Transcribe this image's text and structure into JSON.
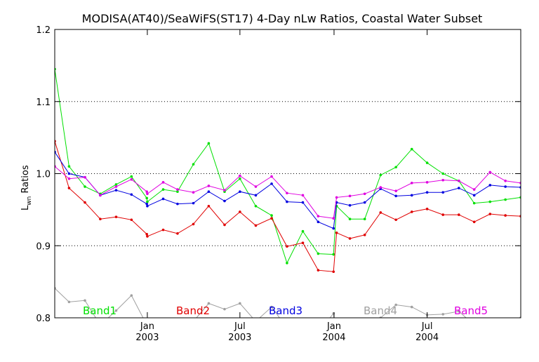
{
  "chart_data": {
    "type": "line",
    "title": "MODISA(AT40)/SeaWiFS(ST17) 4-Day nLw Ratios, Coastal Water Subset",
    "ylabel_main": "L",
    "ylabel_sub": "wn",
    "ylabel_rest": " Ratios",
    "xlabel": "",
    "ylim": [
      0.8,
      1.2
    ],
    "xlim": [
      "2002-07-04",
      "2004-12-31"
    ],
    "grid": "horizontal dotted",
    "yticks": [
      0.8,
      0.9,
      1.0,
      1.1,
      1.2
    ],
    "ytick_labels": [
      "0.8",
      "0.9",
      "1.0",
      "1.1",
      "1.2"
    ],
    "xticks": [
      {
        "date": "2003-01-01",
        "month": "Jan",
        "year": "2003"
      },
      {
        "date": "2003-07-01",
        "month": "Jul",
        "year": "2003"
      },
      {
        "date": "2004-01-01",
        "month": "Jan",
        "year": "2004"
      },
      {
        "date": "2004-07-01",
        "month": "Jul",
        "year": "2004"
      }
    ],
    "x": [
      "2002-07-04",
      "2002-08-01",
      "2002-09-01",
      "2002-10-01",
      "2002-11-01",
      "2002-12-01",
      "2002-12-31",
      "2003-01-01",
      "2003-02-01",
      "2003-03-01",
      "2003-04-01",
      "2003-05-01",
      "2003-06-01",
      "2003-07-01",
      "2003-08-01",
      "2003-09-01",
      "2003-10-01",
      "2003-11-01",
      "2003-12-01",
      "2003-12-31",
      "2004-01-06",
      "2004-02-01",
      "2004-03-01",
      "2004-04-01",
      "2004-05-01",
      "2004-06-01",
      "2004-07-01",
      "2004-08-01",
      "2004-09-01",
      "2004-10-01",
      "2004-11-01",
      "2004-12-01",
      "2004-12-31"
    ],
    "series": [
      {
        "name": "Band1",
        "color": "#00e000",
        "values": [
          1.145,
          1.01,
          0.982,
          0.972,
          0.985,
          0.996,
          0.966,
          0.961,
          0.978,
          0.975,
          1.013,
          1.042,
          0.975,
          0.993,
          0.955,
          0.942,
          0.876,
          0.92,
          0.889,
          0.888,
          0.955,
          0.937,
          0.937,
          0.998,
          1.009,
          1.034,
          1.015,
          1.0,
          0.99,
          0.959,
          0.961,
          0.964,
          0.967
        ]
      },
      {
        "name": "Band2",
        "color": "#e00000",
        "values": [
          1.045,
          0.98,
          0.96,
          0.937,
          0.94,
          0.936,
          0.916,
          0.913,
          0.922,
          0.917,
          0.93,
          0.955,
          0.929,
          0.947,
          0.928,
          0.938,
          0.899,
          0.904,
          0.866,
          0.864,
          0.918,
          0.91,
          0.915,
          0.946,
          0.936,
          0.947,
          0.951,
          0.943,
          0.943,
          0.933,
          0.944,
          0.942,
          0.941
        ]
      },
      {
        "name": "Band3",
        "color": "#0000e0",
        "values": [
          1.03,
          1.0,
          0.995,
          0.97,
          0.977,
          0.971,
          0.958,
          0.955,
          0.965,
          0.958,
          0.959,
          0.975,
          0.962,
          0.975,
          0.97,
          0.986,
          0.961,
          0.96,
          0.933,
          0.924,
          0.96,
          0.956,
          0.96,
          0.979,
          0.969,
          0.97,
          0.974,
          0.974,
          0.98,
          0.97,
          0.984,
          0.982,
          0.981
        ]
      },
      {
        "name": "Band4",
        "color": "#a0a0a0",
        "values": [
          0.841,
          0.822,
          0.824,
          0.79,
          0.81,
          0.831,
          0.79,
          0.775,
          0.79,
          0.785,
          0.795,
          0.82,
          0.812,
          0.82,
          0.795,
          0.815,
          0.786,
          0.79,
          0.78,
          0.806,
          0.77,
          0.78,
          0.79,
          0.8,
          0.818,
          0.815,
          0.804,
          0.805,
          0.809,
          0.79,
          0.78,
          0.795,
          0.8
        ]
      },
      {
        "name": "Band5",
        "color": "#e000e0",
        "values": [
          1.01,
          0.993,
          0.995,
          0.97,
          0.982,
          0.992,
          0.975,
          0.972,
          0.988,
          0.978,
          0.974,
          0.983,
          0.977,
          0.997,
          0.982,
          0.996,
          0.973,
          0.97,
          0.941,
          0.938,
          0.967,
          0.969,
          0.972,
          0.981,
          0.976,
          0.987,
          0.988,
          0.991,
          0.99,
          0.978,
          1.002,
          0.99,
          0.987
        ]
      }
    ],
    "legend": [
      "Band1",
      "Band2",
      "Band3",
      "Band4",
      "Band5"
    ],
    "legend_placement": "bottom, inside plot"
  }
}
